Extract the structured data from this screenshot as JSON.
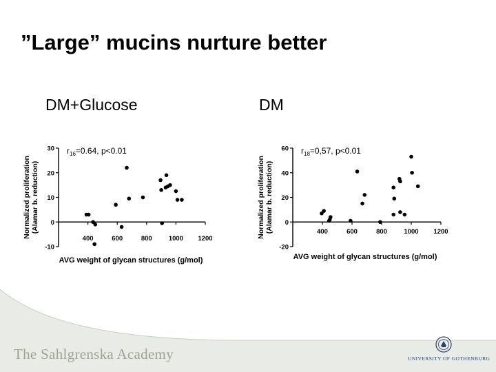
{
  "slide": {
    "title": "”Large” mucins nurture better",
    "footer_left": "The Sahlgrenska Academy",
    "footer_right": "UNIVERSITY OF GOTHENBURG",
    "accent_color": "#9aa493"
  },
  "chart_data": [
    {
      "type": "scatter",
      "heading": "DM+Glucose",
      "annotation": {
        "r": "r",
        "sub": "16",
        "rest": "=0.64, p<0.01"
      },
      "xlabel": "AVG weight of glycan structures (g/mol)",
      "ylabel_line1": "Normalized proliferation",
      "ylabel_line2": "(Alamar b. reduction)",
      "xlim": [
        200,
        1200
      ],
      "ylim": [
        -10,
        30
      ],
      "xticks": [
        "400",
        "600",
        "800",
        "1000",
        "1200"
      ],
      "yticks": [
        "-10",
        "0",
        "10",
        "20",
        "30"
      ],
      "xtick_values": [
        400,
        600,
        800,
        1000,
        1200
      ],
      "ytick_values": [
        -10,
        0,
        10,
        20,
        30
      ],
      "points": [
        {
          "x": 390,
          "y": 3
        },
        {
          "x": 405,
          "y": 3
        },
        {
          "x": 435,
          "y": 0
        },
        {
          "x": 450,
          "y": -1
        },
        {
          "x": 445,
          "y": -9
        },
        {
          "x": 590,
          "y": 7
        },
        {
          "x": 630,
          "y": -2
        },
        {
          "x": 665,
          "y": 22
        },
        {
          "x": 680,
          "y": 9.5
        },
        {
          "x": 775,
          "y": 10
        },
        {
          "x": 895,
          "y": 17
        },
        {
          "x": 905,
          "y": -0.5
        },
        {
          "x": 900,
          "y": 13
        },
        {
          "x": 935,
          "y": 19
        },
        {
          "x": 930,
          "y": 14
        },
        {
          "x": 945,
          "y": 14.5
        },
        {
          "x": 960,
          "y": 15
        },
        {
          "x": 1000,
          "y": 12.5
        },
        {
          "x": 1010,
          "y": 9
        },
        {
          "x": 1040,
          "y": 9
        }
      ]
    },
    {
      "type": "scatter",
      "heading": "DM",
      "annotation": {
        "r": "r",
        "sub": "18",
        "rest": "=0,57, p<0.01"
      },
      "xlabel": "AVG weight of glycan structures (g/mol)",
      "ylabel_line1": "Normalized proliferation",
      "ylabel_line2": "(Alamar b. reduction)",
      "xlim": [
        200,
        1200
      ],
      "ylim": [
        -20,
        60
      ],
      "xticks": [
        "400",
        "600",
        "800",
        "1000",
        "1200"
      ],
      "yticks": [
        "-20",
        "0",
        "20",
        "40",
        "60"
      ],
      "xtick_values": [
        400,
        600,
        800,
        1000,
        1200
      ],
      "ytick_values": [
        -20,
        0,
        20,
        40,
        60
      ],
      "points": [
        {
          "x": 395,
          "y": 7
        },
        {
          "x": 410,
          "y": 9
        },
        {
          "x": 445,
          "y": 1
        },
        {
          "x": 455,
          "y": 4
        },
        {
          "x": 450,
          "y": 2
        },
        {
          "x": 590,
          "y": 1
        },
        {
          "x": 635,
          "y": 41
        },
        {
          "x": 670,
          "y": 15
        },
        {
          "x": 685,
          "y": 22
        },
        {
          "x": 790,
          "y": 0
        },
        {
          "x": 880,
          "y": 28
        },
        {
          "x": 885,
          "y": 19
        },
        {
          "x": 880,
          "y": 6
        },
        {
          "x": 920,
          "y": 35
        },
        {
          "x": 925,
          "y": 33
        },
        {
          "x": 925,
          "y": 8
        },
        {
          "x": 955,
          "y": 6
        },
        {
          "x": 1000,
          "y": 53
        },
        {
          "x": 1005,
          "y": 40
        },
        {
          "x": 1045,
          "y": 29
        }
      ]
    }
  ]
}
